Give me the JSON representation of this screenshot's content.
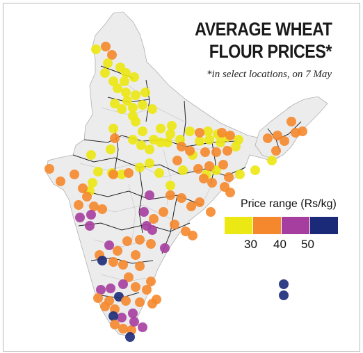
{
  "title_line1": "AVERAGE WHEAT",
  "title_line2": "FLOUR PRICES*",
  "subtitle": "*in select locations, on 7 May",
  "legend": {
    "title": "Price range (Rs/kg)",
    "colors": [
      "#ece813",
      "#f5882c",
      "#a63ea0",
      "#1b2a78"
    ],
    "ticks": [
      "30",
      "40",
      "50"
    ]
  },
  "map_colors": {
    "land": "#ececec",
    "border": "#222222",
    "district": "#c9c9c9"
  }
}
